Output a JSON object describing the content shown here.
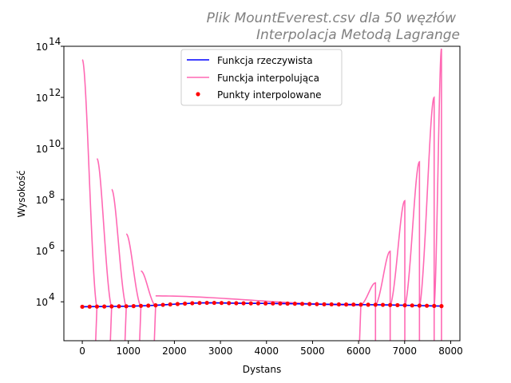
{
  "chart_data": {
    "type": "line",
    "title": "Plik MountEverest.csv dla 50 węzłów",
    "subtitle": "Interpolacja Metodą Lagrange",
    "xlabel": "Dystans",
    "ylabel": "Wysokość",
    "xlim": [
      -400,
      8200
    ],
    "ylim": [
      300,
      100000000000000.0
    ],
    "x_scale": "linear",
    "y_scale": "log",
    "grid": false,
    "legend_position": "upper-center",
    "x_ticks": [
      0,
      1000,
      2000,
      3000,
      4000,
      5000,
      6000,
      7000,
      8000
    ],
    "y_ticks": [
      {
        "value": 10000,
        "base": "10",
        "exp": "4"
      },
      {
        "value": 1000000,
        "base": "10",
        "exp": "6"
      },
      {
        "value": 100000000,
        "base": "10",
        "exp": "8"
      },
      {
        "value": 10000000000,
        "base": "10",
        "exp": "10"
      },
      {
        "value": 1000000000000,
        "base": "10",
        "exp": "12"
      },
      {
        "value": 100000000000000,
        "base": "10",
        "exp": "14"
      }
    ],
    "series": [
      {
        "name": "Funkcja rzeczywista",
        "color": "#0000ff",
        "style": "line"
      },
      {
        "name": "Funckja interpolująca",
        "color": "#ff69b4",
        "style": "line"
      },
      {
        "name": "Punkty interpolowane",
        "color": "#ff0000",
        "style": "points"
      }
    ],
    "nodes": {
      "x": [
        0,
        159,
        318,
        478,
        637,
        796,
        955,
        1114,
        1273,
        1433,
        1592,
        1751,
        1910,
        2069,
        2229,
        2388,
        2547,
        2706,
        2865,
        3024,
        3184,
        3343,
        3502,
        3661,
        3820,
        3980,
        4139,
        4298,
        4457,
        4616,
        4776,
        4935,
        5094,
        5253,
        5412,
        5571,
        5731,
        5890,
        6049,
        6208,
        6367,
        6527,
        6686,
        6845,
        7004,
        7163,
        7322,
        7482,
        7641,
        7800
      ],
      "y": [
        6400,
        6450,
        6500,
        6550,
        6600,
        6650,
        6700,
        6800,
        6950,
        7100,
        7300,
        7600,
        7900,
        8200,
        8500,
        8800,
        9000,
        9100,
        9100,
        9000,
        8900,
        8800,
        8750,
        8700,
        8700,
        8650,
        8600,
        8550,
        8500,
        8400,
        8300,
        8200,
        8100,
        8000,
        7950,
        7900,
        7850,
        7800,
        7750,
        7700,
        7650,
        7600,
        7500,
        7400,
        7300,
        7200,
        7100,
        7000,
        6900,
        6800
      ]
    },
    "interpolation_envelope": {
      "x": [
        0,
        318,
        637,
        955,
        1273,
        1592,
        6049,
        6367,
        6686,
        7004,
        7322,
        7641,
        7800
      ],
      "y": [
        30000000000000.0,
        4000000000.0,
        250000000.0,
        4500000.0,
        160000.0,
        17000.0,
        11000.0,
        55000.0,
        950000.0,
        90000000.0,
        3000000000.0,
        1000000000000.0,
        80000000000000.0
      ]
    }
  }
}
